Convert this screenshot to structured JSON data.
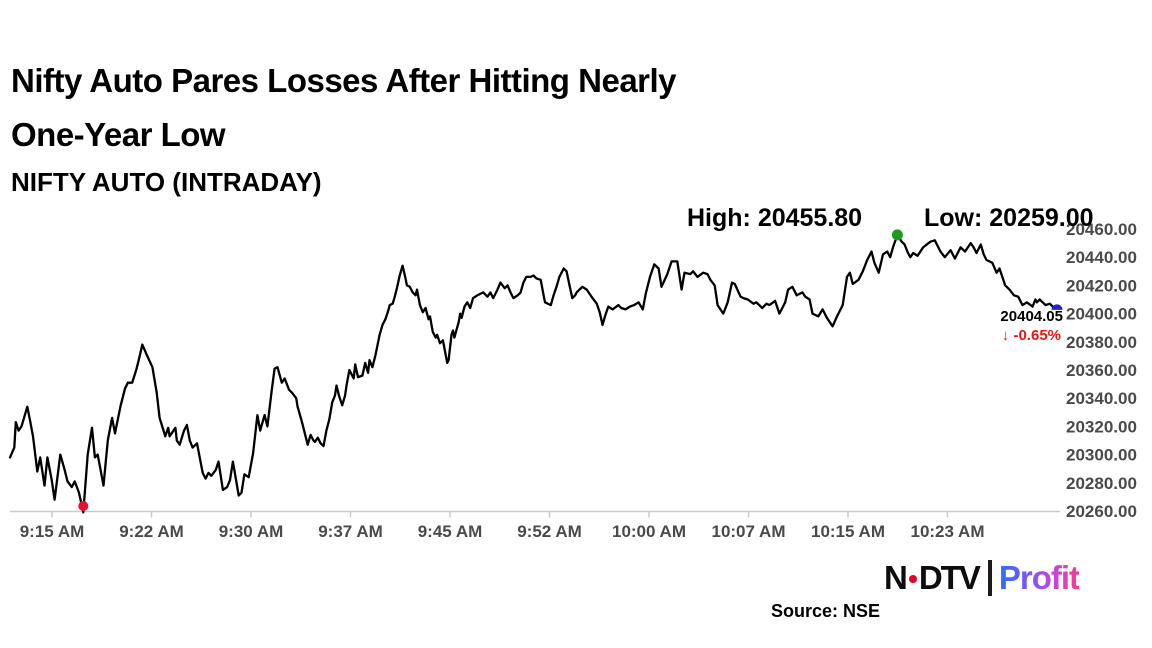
{
  "header": {
    "title_line1": "Nifty Auto Pares Losses After Hitting Nearly",
    "title_line2": "One-Year Low",
    "subtitle": "NIFTY AUTO (INTRADAY)"
  },
  "annotations": {
    "high_label": "High: 20455.80",
    "low_label": "Low: 20259.00",
    "last_price": "20404.05",
    "change_arrow": "↓",
    "change_pct": "-0.65%",
    "change_color": "#ed1515"
  },
  "footer": {
    "source": "Source: NSE",
    "logo": {
      "ndtv_n": "N",
      "ndtv_dtv": "DTV",
      "profit": "Profit"
    }
  },
  "chart_data": {
    "type": "line",
    "title": "NIFTY AUTO (INTRADAY)",
    "x_axis": {
      "tick_labels": [
        "9:15 AM",
        "9:22 AM",
        "9:30 AM",
        "9:37 AM",
        "9:45 AM",
        "9:52 AM",
        "10:00 AM",
        "10:07 AM",
        "10:15 AM",
        "10:23 AM"
      ],
      "start_time": "9:15 AM",
      "end_time": "10:28 AM",
      "unit": "minutes after 9:15 AM"
    },
    "y_axis": {
      "min": 20260,
      "max": 20460,
      "ticks": [
        20460,
        20440,
        20420,
        20400,
        20380,
        20360,
        20340,
        20320,
        20300,
        20280,
        20260
      ],
      "tick_format": "0.00"
    },
    "line_color": "#000000",
    "grid": false,
    "markers": {
      "high": {
        "value": 20455.8,
        "time": "10:17 AM",
        "color": "#1f9a1f"
      },
      "low": {
        "value": 20259.0,
        "time": "9:20 AM",
        "color": "#e8112d"
      },
      "last": {
        "value": 20404.05,
        "time": "10:28 AM",
        "color": "#2323cc",
        "change_pct": -0.65
      }
    },
    "series": [
      {
        "name": "NIFTY AUTO",
        "points": [
          [
            0,
            20298
          ],
          [
            0.3,
            20305
          ],
          [
            0.4,
            20323
          ],
          [
            0.6,
            20317
          ],
          [
            0.8,
            20320
          ],
          [
            1.2,
            20334
          ],
          [
            1.4,
            20324
          ],
          [
            1.6,
            20313
          ],
          [
            1.9,
            20288
          ],
          [
            2.1,
            20298
          ],
          [
            2.4,
            20278
          ],
          [
            2.6,
            20298
          ],
          [
            2.9,
            20282
          ],
          [
            3.1,
            20268
          ],
          [
            3.5,
            20300
          ],
          [
            3.8,
            20289
          ],
          [
            4,
            20281
          ],
          [
            4.3,
            20277
          ],
          [
            4.5,
            20281
          ],
          [
            4.8,
            20273
          ],
          [
            5.1,
            20259
          ],
          [
            5.4,
            20300
          ],
          [
            5.7,
            20319
          ],
          [
            5.9,
            20298
          ],
          [
            6.1,
            20300
          ],
          [
            6.5,
            20278
          ],
          [
            6.8,
            20310
          ],
          [
            7.1,
            20326
          ],
          [
            7.3,
            20315
          ],
          [
            7.4,
            20320
          ],
          [
            7.7,
            20335
          ],
          [
            8,
            20347
          ],
          [
            8.2,
            20351
          ],
          [
            8.5,
            20351
          ],
          [
            8.8,
            20361
          ],
          [
            9,
            20369
          ],
          [
            9.2,
            20378
          ],
          [
            9.5,
            20371
          ],
          [
            9.9,
            20362
          ],
          [
            10.2,
            20344
          ],
          [
            10.4,
            20326
          ],
          [
            10.8,
            20313
          ],
          [
            11,
            20319
          ],
          [
            11.1,
            20313
          ],
          [
            11.5,
            20319
          ],
          [
            11.6,
            20310
          ],
          [
            11.8,
            20307
          ],
          [
            12.1,
            20317
          ],
          [
            12.3,
            20321
          ],
          [
            12.5,
            20310
          ],
          [
            12.7,
            20305
          ],
          [
            13,
            20308
          ],
          [
            13.4,
            20287
          ],
          [
            13.6,
            20283
          ],
          [
            13.8,
            20287
          ],
          [
            14,
            20285
          ],
          [
            14.3,
            20289
          ],
          [
            14.5,
            20295
          ],
          [
            14.8,
            20275
          ],
          [
            15.1,
            20277
          ],
          [
            15.3,
            20282
          ],
          [
            15.5,
            20295
          ],
          [
            15.9,
            20271
          ],
          [
            16.1,
            20273
          ],
          [
            16.3,
            20286
          ],
          [
            16.6,
            20284
          ],
          [
            16.9,
            20301
          ],
          [
            17.2,
            20328
          ],
          [
            17.4,
            20317
          ],
          [
            17.7,
            20328
          ],
          [
            17.9,
            20320
          ],
          [
            18.2,
            20346
          ],
          [
            18.4,
            20361
          ],
          [
            18.6,
            20362
          ],
          [
            18.9,
            20351
          ],
          [
            19.1,
            20354
          ],
          [
            19.4,
            20346
          ],
          [
            19.6,
            20344
          ],
          [
            19.9,
            20340
          ],
          [
            20,
            20334
          ],
          [
            20.3,
            20323
          ],
          [
            20.7,
            20307
          ],
          [
            20.9,
            20314
          ],
          [
            21.1,
            20310
          ],
          [
            21.2,
            20309
          ],
          [
            21.4,
            20312
          ],
          [
            21.6,
            20308
          ],
          [
            21.8,
            20306
          ],
          [
            22,
            20317
          ],
          [
            22.2,
            20325
          ],
          [
            22.4,
            20337
          ],
          [
            22.6,
            20342
          ],
          [
            22.7,
            20349
          ],
          [
            22.9,
            20341
          ],
          [
            23.1,
            20335
          ],
          [
            23.3,
            20342
          ],
          [
            23.4,
            20349
          ],
          [
            23.6,
            20360
          ],
          [
            23.9,
            20354
          ],
          [
            24,
            20364
          ],
          [
            24.2,
            20355
          ],
          [
            24.5,
            20356
          ],
          [
            24.7,
            20365
          ],
          [
            24.9,
            20358
          ],
          [
            25,
            20367
          ],
          [
            25.2,
            20362
          ],
          [
            25.4,
            20370
          ],
          [
            25.6,
            20380
          ],
          [
            25.7,
            20385
          ],
          [
            25.9,
            20392
          ],
          [
            26.1,
            20396
          ],
          [
            26.3,
            20402
          ],
          [
            26.4,
            20406
          ],
          [
            26.6,
            20407
          ],
          [
            26.7,
            20410
          ],
          [
            26.9,
            20418
          ],
          [
            27.1,
            20427
          ],
          [
            27.3,
            20434
          ],
          [
            27.5,
            20425
          ],
          [
            27.6,
            20420
          ],
          [
            27.8,
            20419
          ],
          [
            28,
            20415
          ],
          [
            28.2,
            20413
          ],
          [
            28.3,
            20417
          ],
          [
            28.5,
            20406
          ],
          [
            28.7,
            20401
          ],
          [
            28.9,
            20404
          ],
          [
            29.1,
            20396
          ],
          [
            29.2,
            20398
          ],
          [
            29.4,
            20387
          ],
          [
            29.6,
            20383
          ],
          [
            29.7,
            20385
          ],
          [
            29.9,
            20379
          ],
          [
            30.1,
            20381
          ],
          [
            30.2,
            20376
          ],
          [
            30.4,
            20365
          ],
          [
            30.5,
            20367
          ],
          [
            30.7,
            20385
          ],
          [
            30.8,
            20388
          ],
          [
            30.9,
            20383
          ],
          [
            31.2,
            20394
          ],
          [
            31.3,
            20400
          ],
          [
            31.4,
            20397
          ],
          [
            31.6,
            20405
          ],
          [
            31.8,
            20408
          ],
          [
            32,
            20404
          ],
          [
            32.2,
            20411
          ],
          [
            32.5,
            20413
          ],
          [
            32.9,
            20415
          ],
          [
            33.2,
            20412
          ],
          [
            33.4,
            20415
          ],
          [
            33.6,
            20411
          ],
          [
            33.9,
            20417
          ],
          [
            34.1,
            20422
          ],
          [
            34.4,
            20418
          ],
          [
            34.6,
            20420
          ],
          [
            34.8,
            20415
          ],
          [
            35,
            20411
          ],
          [
            35.3,
            20413
          ],
          [
            35.5,
            20415
          ],
          [
            35.7,
            20422
          ],
          [
            35.9,
            20426
          ],
          [
            36.2,
            20426
          ],
          [
            36.4,
            20427
          ],
          [
            36.6,
            20425
          ],
          [
            36.9,
            20424
          ],
          [
            37.1,
            20413
          ],
          [
            37.2,
            20408
          ],
          [
            37.6,
            20406
          ],
          [
            37.8,
            20413
          ],
          [
            38,
            20419
          ],
          [
            38.2,
            20426
          ],
          [
            38.5,
            20432
          ],
          [
            38.7,
            20430
          ],
          [
            38.9,
            20420
          ],
          [
            39.1,
            20411
          ],
          [
            39.3,
            20413
          ],
          [
            39.4,
            20415
          ],
          [
            39.6,
            20417
          ],
          [
            39.8,
            20419
          ],
          [
            40.1,
            20417
          ],
          [
            40.3,
            20414
          ],
          [
            40.5,
            20411
          ],
          [
            40.8,
            20407
          ],
          [
            41,
            20401
          ],
          [
            41.2,
            20392
          ],
          [
            41.4,
            20399
          ],
          [
            41.6,
            20405
          ],
          [
            41.9,
            20403
          ],
          [
            42.3,
            20406
          ],
          [
            42.5,
            20404
          ],
          [
            42.8,
            20403
          ],
          [
            43.1,
            20405
          ],
          [
            43.4,
            20406
          ],
          [
            43.7,
            20408
          ],
          [
            44,
            20403
          ],
          [
            44.2,
            20414
          ],
          [
            44.5,
            20426
          ],
          [
            44.8,
            20435
          ],
          [
            45.1,
            20432
          ],
          [
            45.3,
            20419
          ],
          [
            45.7,
            20428
          ],
          [
            46,
            20437
          ],
          [
            46.4,
            20437
          ],
          [
            46.7,
            20417
          ],
          [
            46.9,
            20429
          ],
          [
            47.3,
            20428
          ],
          [
            47.5,
            20430
          ],
          [
            47.8,
            20426
          ],
          [
            48.2,
            20429
          ],
          [
            48.5,
            20428
          ],
          [
            48.7,
            20424
          ],
          [
            49,
            20420
          ],
          [
            49.2,
            20406
          ],
          [
            49.6,
            20400
          ],
          [
            49.9,
            20408
          ],
          [
            50.2,
            20422
          ],
          [
            50.4,
            20421
          ],
          [
            50.8,
            20412
          ],
          [
            51,
            20411
          ],
          [
            51.3,
            20410
          ],
          [
            51.7,
            20407
          ],
          [
            51.9,
            20408
          ],
          [
            52.3,
            20404
          ],
          [
            52.6,
            20407
          ],
          [
            52.8,
            20406
          ],
          [
            53.2,
            20409
          ],
          [
            53.5,
            20400
          ],
          [
            53.9,
            20408
          ],
          [
            54.1,
            20417
          ],
          [
            54.4,
            20419
          ],
          [
            54.7,
            20413
          ],
          [
            55.1,
            20415
          ],
          [
            55.3,
            20412
          ],
          [
            55.6,
            20410
          ],
          [
            55.8,
            20400
          ],
          [
            56.2,
            20398
          ],
          [
            56.5,
            20403
          ],
          [
            56.8,
            20397
          ],
          [
            57.2,
            20391
          ],
          [
            57.5,
            20398
          ],
          [
            57.9,
            20406
          ],
          [
            58.2,
            20426
          ],
          [
            58.4,
            20429
          ],
          [
            58.6,
            20421
          ],
          [
            59,
            20424
          ],
          [
            59.3,
            20430
          ],
          [
            59.6,
            20438
          ],
          [
            59.9,
            20444
          ],
          [
            60.1,
            20436
          ],
          [
            60.4,
            20429
          ],
          [
            60.7,
            20442
          ],
          [
            61,
            20444
          ],
          [
            61.2,
            20440
          ],
          [
            61.4,
            20447
          ],
          [
            61.7,
            20455.8
          ],
          [
            62,
            20451
          ],
          [
            62.2,
            20449
          ],
          [
            62.4,
            20444
          ],
          [
            62.6,
            20440
          ],
          [
            62.8,
            20443
          ],
          [
            63.1,
            20441
          ],
          [
            63.5,
            20447
          ],
          [
            64,
            20451
          ],
          [
            64.3,
            20452
          ],
          [
            64.7,
            20444
          ],
          [
            65,
            20440
          ],
          [
            65.4,
            20445
          ],
          [
            65.7,
            20439
          ],
          [
            66.1,
            20447
          ],
          [
            66.4,
            20444
          ],
          [
            66.8,
            20450
          ],
          [
            67,
            20447
          ],
          [
            67.2,
            20443
          ],
          [
            67.5,
            20449
          ],
          [
            67.7,
            20442
          ],
          [
            67.9,
            20438
          ],
          [
            68.3,
            20436
          ],
          [
            68.6,
            20429
          ],
          [
            68.8,
            20432
          ],
          [
            69.2,
            20420
          ],
          [
            69.5,
            20417
          ],
          [
            69.8,
            20413
          ],
          [
            70.1,
            20412
          ],
          [
            70.4,
            20406
          ],
          [
            70.7,
            20408
          ],
          [
            71.1,
            20405
          ],
          [
            71.3,
            20410
          ],
          [
            71.4,
            20408
          ],
          [
            71.6,
            20410
          ],
          [
            72,
            20406
          ],
          [
            72.3,
            20407
          ],
          [
            72.5,
            20405
          ],
          [
            72.8,
            20404.05
          ]
        ]
      }
    ]
  }
}
